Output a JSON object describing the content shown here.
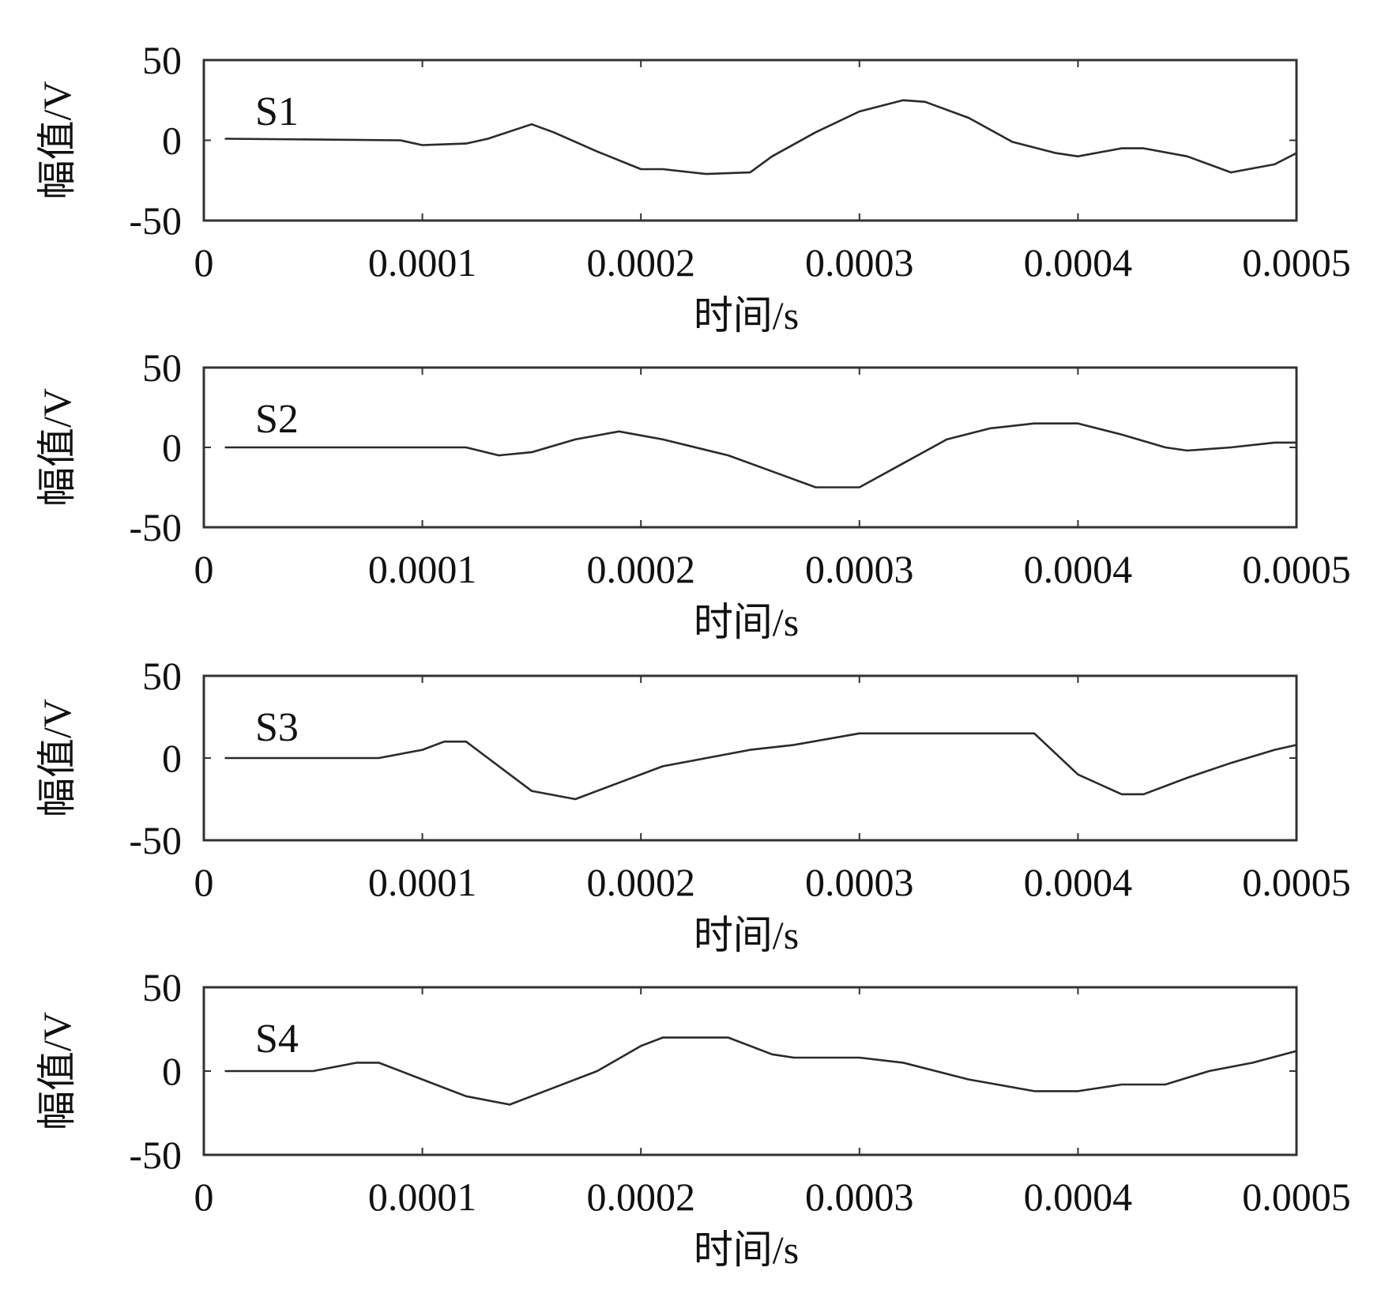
{
  "chart_data": [
    {
      "type": "line",
      "label": "S1",
      "xlabel": "时间/s",
      "ylabel": "幅值/V",
      "xlim": [
        0,
        0.0005
      ],
      "ylim": [
        -50,
        50
      ],
      "xticks": [
        "0",
        "0.0001",
        "0.0002",
        "0.0003",
        "0.0004",
        "0.0005"
      ],
      "yticks": [
        "50",
        "0",
        "-50"
      ],
      "x": [
        1e-05,
        9e-05,
        0.0001,
        0.00012,
        0.00013,
        0.00015,
        0.00016,
        0.00018,
        0.0002,
        0.00021,
        0.00023,
        0.00025,
        0.00026,
        0.00028,
        0.0003,
        0.00032,
        0.00033,
        0.00035,
        0.00037,
        0.00039,
        0.0004,
        0.00042,
        0.00043,
        0.00045,
        0.00047,
        0.00049,
        0.0005
      ],
      "y": [
        1,
        0,
        -3,
        -2,
        1,
        10,
        5,
        -7,
        -18,
        -18,
        -21,
        -20,
        -10,
        5,
        18,
        25,
        24,
        14,
        -1,
        -8,
        -10,
        -5,
        -5,
        -10,
        -20,
        -15,
        -8
      ]
    },
    {
      "type": "line",
      "label": "S2",
      "xlabel": "时间/s",
      "ylabel": "幅值/V",
      "xlim": [
        0,
        0.0005
      ],
      "ylim": [
        -50,
        50
      ],
      "xticks": [
        "0",
        "0.0001",
        "0.0002",
        "0.0003",
        "0.0004",
        "0.0005"
      ],
      "yticks": [
        "50",
        "0",
        "-50"
      ],
      "x": [
        1e-05,
        0.00012,
        0.000135,
        0.00015,
        0.00017,
        0.00019,
        0.00021,
        0.00024,
        0.00026,
        0.00028,
        0.0003,
        0.00032,
        0.00034,
        0.00036,
        0.00038,
        0.0004,
        0.00042,
        0.00044,
        0.00045,
        0.00047,
        0.00049,
        0.0005
      ],
      "y": [
        0,
        0,
        -5,
        -3,
        5,
        10,
        5,
        -5,
        -15,
        -25,
        -25,
        -10,
        5,
        12,
        15,
        15,
        8,
        0,
        -2,
        0,
        3,
        3
      ]
    },
    {
      "type": "line",
      "label": "S3",
      "xlabel": "时间/s",
      "ylabel": "幅值/V",
      "xlim": [
        0,
        0.0005
      ],
      "ylim": [
        -50,
        50
      ],
      "xticks": [
        "0",
        "0.0001",
        "0.0002",
        "0.0003",
        "0.0004",
        "0.0005"
      ],
      "yticks": [
        "50",
        "0",
        "-50"
      ],
      "x": [
        1e-05,
        8e-05,
        0.0001,
        0.00011,
        0.00012,
        0.00013,
        0.00015,
        0.00017,
        0.00019,
        0.00021,
        0.00023,
        0.00025,
        0.00027,
        0.0003,
        0.00033,
        0.00038,
        0.0004,
        0.00042,
        0.00043,
        0.00045,
        0.00047,
        0.00049,
        0.0005
      ],
      "y": [
        0,
        0,
        5,
        10,
        10,
        0,
        -20,
        -25,
        -15,
        -5,
        0,
        5,
        8,
        15,
        15,
        15,
        -10,
        -22,
        -22,
        -12,
        -3,
        5,
        8
      ]
    },
    {
      "type": "line",
      "label": "S4",
      "xlabel": "时间/s",
      "ylabel": "幅值/V",
      "xlim": [
        0,
        0.0005
      ],
      "ylim": [
        -50,
        50
      ],
      "xticks": [
        "0",
        "0.0001",
        "0.0002",
        "0.0003",
        "0.0004",
        "0.0005"
      ],
      "yticks": [
        "50",
        "0",
        "-50"
      ],
      "x": [
        1e-05,
        5e-05,
        7e-05,
        8e-05,
        0.0001,
        0.00012,
        0.00014,
        0.00016,
        0.00018,
        0.0002,
        0.00021,
        0.00024,
        0.00026,
        0.00027,
        0.0003,
        0.00032,
        0.00035,
        0.00038,
        0.0004,
        0.00042,
        0.00044,
        0.00046,
        0.00048,
        0.0005
      ],
      "y": [
        0,
        0,
        5,
        5,
        -5,
        -15,
        -20,
        -10,
        0,
        15,
        20,
        20,
        10,
        8,
        8,
        5,
        -5,
        -12,
        -12,
        -8,
        -8,
        0,
        5,
        12
      ]
    }
  ]
}
